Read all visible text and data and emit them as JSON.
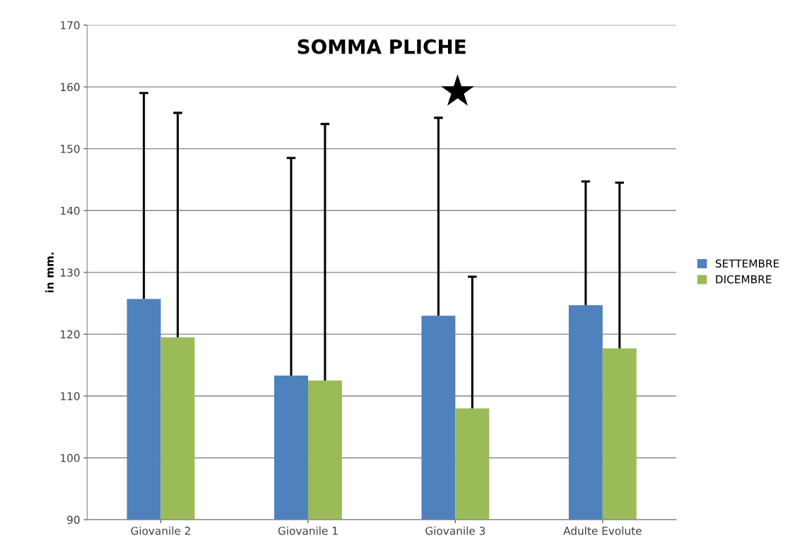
{
  "chart_data": {
    "type": "bar",
    "title": "SOMMA PLICHE",
    "ylabel": "in mm.",
    "categories": [
      "Giovanile 2",
      "Giovanile 1",
      "Giovanile 3",
      "Adulte Evolute"
    ],
    "series": [
      {
        "name": "SETTEMBRE",
        "color": "#4f81bd",
        "values": [
          125.7,
          113.3,
          123,
          124.7
        ],
        "errors": [
          [
            125.7,
            159
          ],
          [
            113.3,
            148.5
          ],
          [
            123,
            155
          ],
          [
            124.7,
            144.7
          ]
        ]
      },
      {
        "name": "DICEMBRE",
        "color": "#9bbb59",
        "values": [
          119.5,
          112.5,
          108,
          117.7
        ],
        "errors": [
          [
            119.5,
            155.8
          ],
          [
            112.5,
            154
          ],
          [
            108,
            129.3
          ],
          [
            117.7,
            144.5
          ]
        ]
      }
    ],
    "annotations": [
      "★"
    ],
    "ylim": [
      90,
      170
    ],
    "yticks": [
      90,
      100,
      110,
      120,
      130,
      140,
      150,
      160,
      170
    ],
    "grid": "y",
    "legend": "right"
  }
}
